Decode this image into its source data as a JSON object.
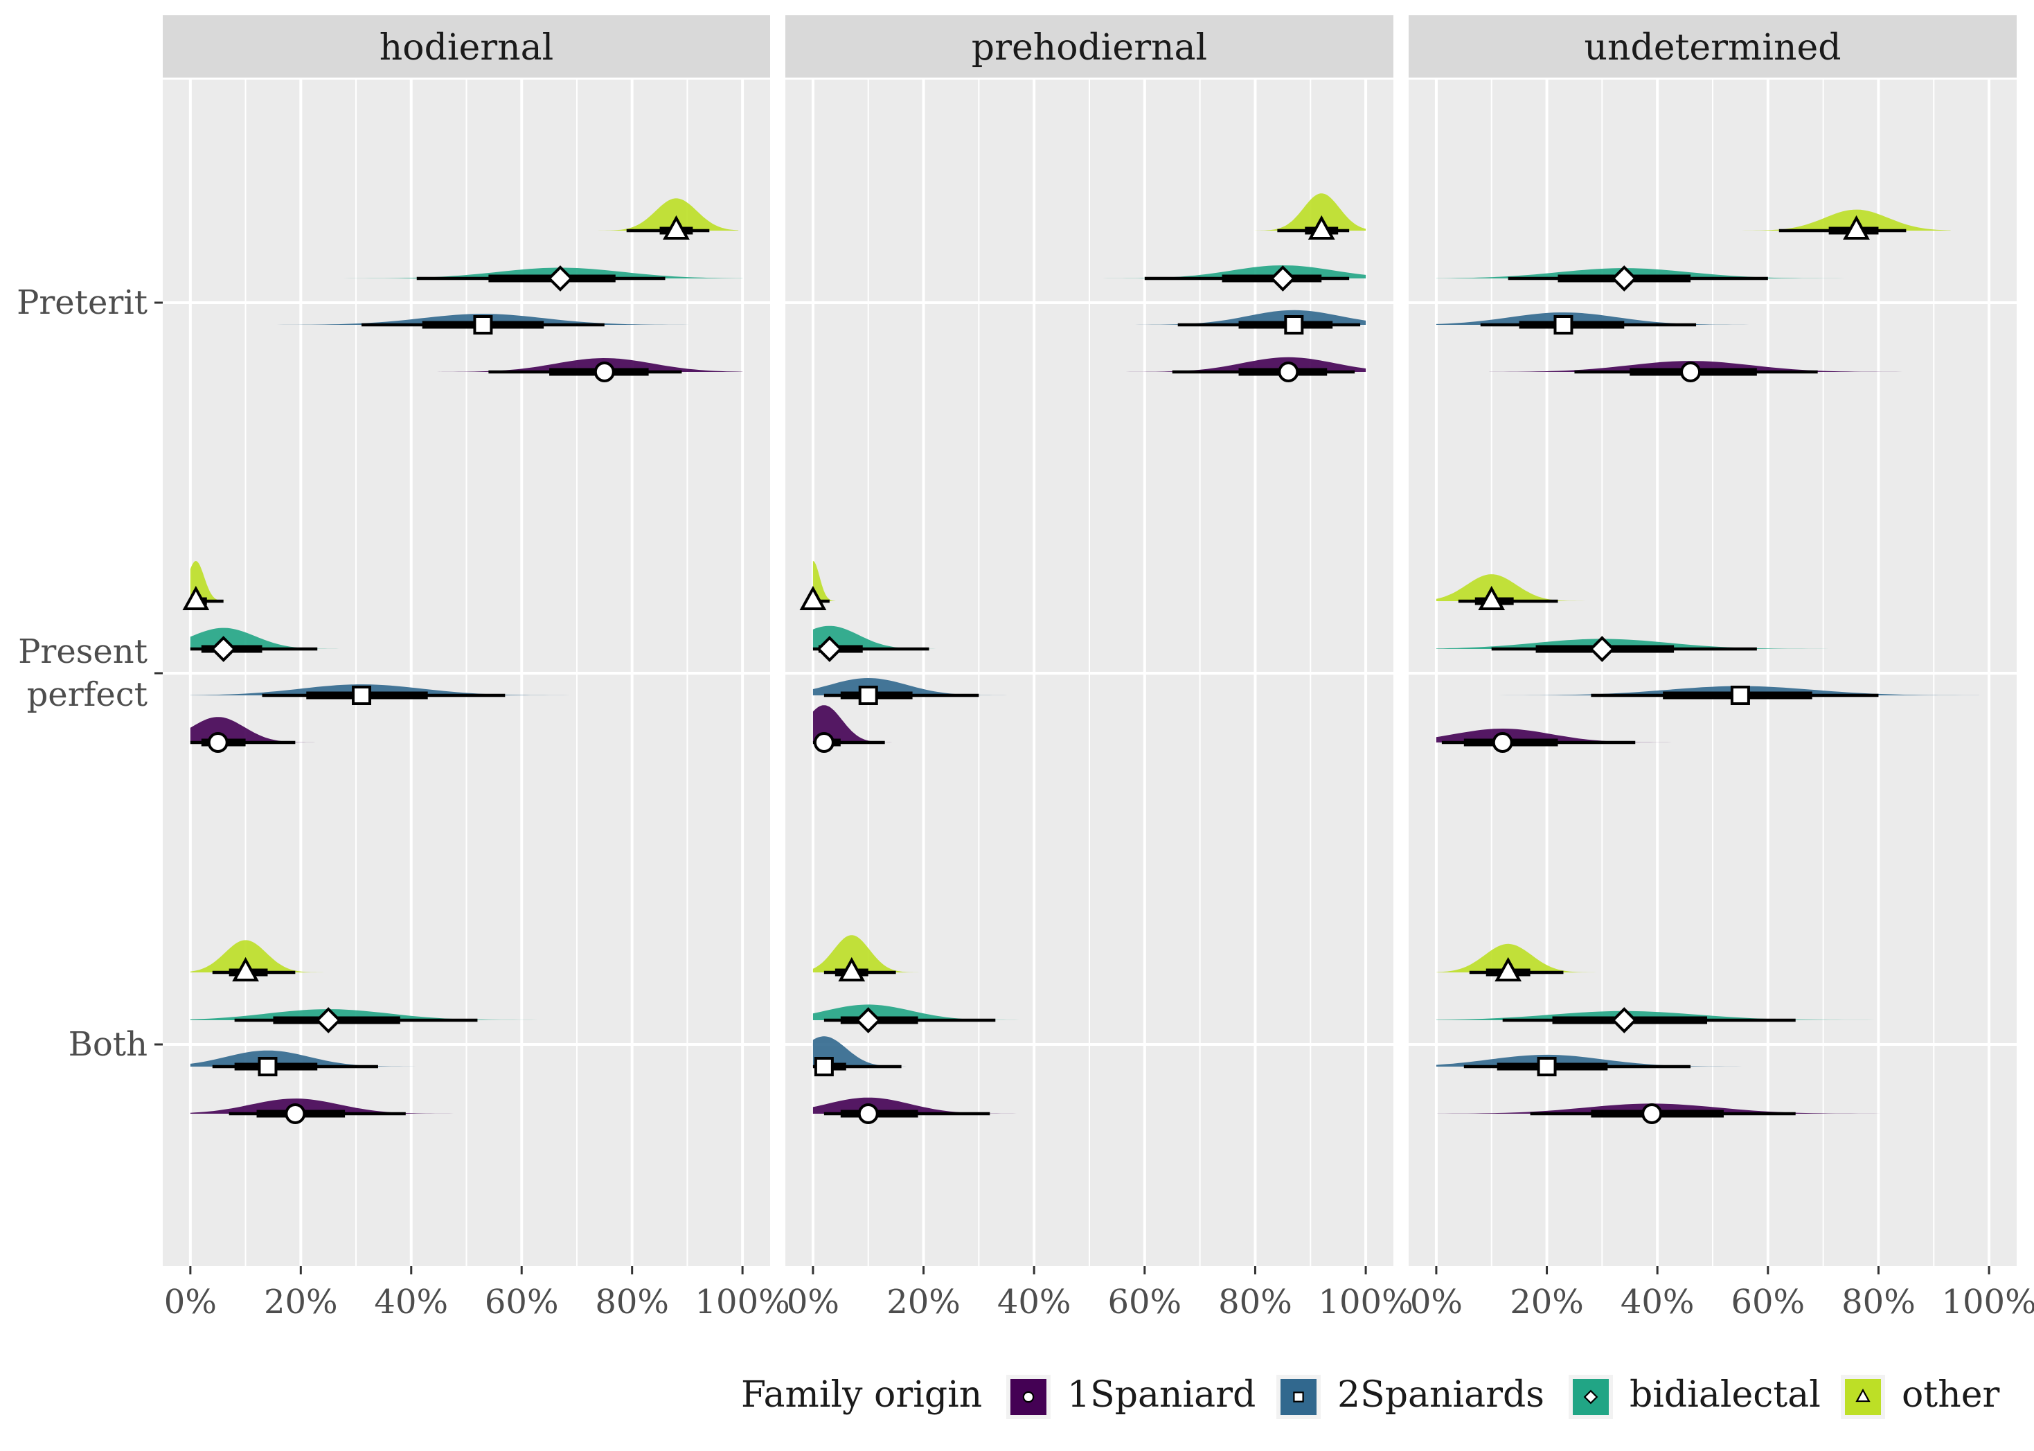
{
  "chart_data": {
    "type": "point-interval (half-eye) facet chart",
    "facets": [
      "hodiernal",
      "prehodiernal",
      "undetermined"
    ],
    "y_categories": [
      "Preterit",
      "Present\nperfect",
      "Both"
    ],
    "x_ticks": [
      0,
      20,
      40,
      60,
      80,
      100
    ],
    "x_tick_labels": [
      "0%",
      "20%",
      "40%",
      "60%",
      "80%",
      "100%"
    ],
    "xlim": [
      -5,
      105
    ],
    "legend": {
      "title": "Family origin",
      "position": "bottom",
      "entries": [
        "1Spaniard",
        "2Spaniards",
        "bidialectal",
        "other"
      ]
    },
    "colors": {
      "1Spaniard": "#440154",
      "2Spaniards": "#31688e",
      "bidialectal": "#21a585",
      "other": "#bddf26",
      "panel_bg": "#ebebeb",
      "strip_bg": "#d9d9d9",
      "grid": "#ffffff"
    },
    "shapes": {
      "1Spaniard": "circle",
      "2Spaniards": "square",
      "bidialectal": "diamond",
      "other": "triangle"
    },
    "series": [
      {
        "facet": "hodiernal",
        "category": "Preterit",
        "group": "other",
        "point": 88,
        "inner": [
          85,
          91
        ],
        "outer": [
          79,
          94
        ]
      },
      {
        "facet": "hodiernal",
        "category": "Preterit",
        "group": "bidialectal",
        "point": 67,
        "inner": [
          54,
          77
        ],
        "outer": [
          41,
          86
        ]
      },
      {
        "facet": "hodiernal",
        "category": "Preterit",
        "group": "2Spaniards",
        "point": 53,
        "inner": [
          42,
          64
        ],
        "outer": [
          31,
          75
        ]
      },
      {
        "facet": "hodiernal",
        "category": "Preterit",
        "group": "1Spaniard",
        "point": 75,
        "inner": [
          65,
          83
        ],
        "outer": [
          54,
          89
        ]
      },
      {
        "facet": "hodiernal",
        "category": "Present\nperfect",
        "group": "other",
        "point": 1,
        "inner": [
          0,
          3
        ],
        "outer": [
          0,
          6
        ]
      },
      {
        "facet": "hodiernal",
        "category": "Present\nperfect",
        "group": "bidialectal",
        "point": 6,
        "inner": [
          2,
          13
        ],
        "outer": [
          0,
          23
        ]
      },
      {
        "facet": "hodiernal",
        "category": "Present\nperfect",
        "group": "2Spaniards",
        "point": 31,
        "inner": [
          21,
          43
        ],
        "outer": [
          13,
          57
        ]
      },
      {
        "facet": "hodiernal",
        "category": "Present\nperfect",
        "group": "1Spaniard",
        "point": 5,
        "inner": [
          2,
          10
        ],
        "outer": [
          0,
          19
        ]
      },
      {
        "facet": "hodiernal",
        "category": "Both",
        "group": "other",
        "point": 10,
        "inner": [
          7,
          14
        ],
        "outer": [
          4,
          19
        ]
      },
      {
        "facet": "hodiernal",
        "category": "Both",
        "group": "bidialectal",
        "point": 25,
        "inner": [
          15,
          38
        ],
        "outer": [
          8,
          52
        ]
      },
      {
        "facet": "hodiernal",
        "category": "Both",
        "group": "2Spaniards",
        "point": 14,
        "inner": [
          8,
          23
        ],
        "outer": [
          4,
          34
        ]
      },
      {
        "facet": "hodiernal",
        "category": "Both",
        "group": "1Spaniard",
        "point": 19,
        "inner": [
          12,
          28
        ],
        "outer": [
          7,
          39
        ]
      },
      {
        "facet": "prehodiernal",
        "category": "Preterit",
        "group": "other",
        "point": 92,
        "inner": [
          89,
          95
        ],
        "outer": [
          84,
          97
        ]
      },
      {
        "facet": "prehodiernal",
        "category": "Preterit",
        "group": "bidialectal",
        "point": 85,
        "inner": [
          74,
          92
        ],
        "outer": [
          60,
          97
        ]
      },
      {
        "facet": "prehodiernal",
        "category": "Preterit",
        "group": "2Spaniards",
        "point": 87,
        "inner": [
          77,
          94
        ],
        "outer": [
          66,
          99
        ]
      },
      {
        "facet": "prehodiernal",
        "category": "Preterit",
        "group": "1Spaniard",
        "point": 86,
        "inner": [
          77,
          93
        ],
        "outer": [
          65,
          98
        ]
      },
      {
        "facet": "prehodiernal",
        "category": "Present\nperfect",
        "group": "other",
        "point": 0,
        "inner": [
          0,
          1
        ],
        "outer": [
          0,
          3
        ]
      },
      {
        "facet": "prehodiernal",
        "category": "Present\nperfect",
        "group": "bidialectal",
        "point": 3,
        "inner": [
          1,
          9
        ],
        "outer": [
          0,
          21
        ]
      },
      {
        "facet": "prehodiernal",
        "category": "Present\nperfect",
        "group": "2Spaniards",
        "point": 10,
        "inner": [
          5,
          18
        ],
        "outer": [
          2,
          30
        ]
      },
      {
        "facet": "prehodiernal",
        "category": "Present\nperfect",
        "group": "1Spaniard",
        "point": 2,
        "inner": [
          1,
          5
        ],
        "outer": [
          0,
          13
        ]
      },
      {
        "facet": "prehodiernal",
        "category": "Both",
        "group": "other",
        "point": 7,
        "inner": [
          4,
          10
        ],
        "outer": [
          2,
          15
        ]
      },
      {
        "facet": "prehodiernal",
        "category": "Both",
        "group": "bidialectal",
        "point": 10,
        "inner": [
          5,
          19
        ],
        "outer": [
          2,
          33
        ]
      },
      {
        "facet": "prehodiernal",
        "category": "Both",
        "group": "2Spaniards",
        "point": 2,
        "inner": [
          1,
          6
        ],
        "outer": [
          0,
          16
        ]
      },
      {
        "facet": "prehodiernal",
        "category": "Both",
        "group": "1Spaniard",
        "point": 10,
        "inner": [
          5,
          19
        ],
        "outer": [
          2,
          32
        ]
      },
      {
        "facet": "undetermined",
        "category": "Preterit",
        "group": "other",
        "point": 76,
        "inner": [
          71,
          80
        ],
        "outer": [
          62,
          85
        ]
      },
      {
        "facet": "undetermined",
        "category": "Preterit",
        "group": "bidialectal",
        "point": 34,
        "inner": [
          22,
          46
        ],
        "outer": [
          13,
          60
        ]
      },
      {
        "facet": "undetermined",
        "category": "Preterit",
        "group": "2Spaniards",
        "point": 23,
        "inner": [
          15,
          34
        ],
        "outer": [
          8,
          47
        ]
      },
      {
        "facet": "undetermined",
        "category": "Preterit",
        "group": "1Spaniard",
        "point": 46,
        "inner": [
          35,
          58
        ],
        "outer": [
          25,
          69
        ]
      },
      {
        "facet": "undetermined",
        "category": "Present\nperfect",
        "group": "other",
        "point": 10,
        "inner": [
          7,
          14
        ],
        "outer": [
          4,
          22
        ]
      },
      {
        "facet": "undetermined",
        "category": "Present\nperfect",
        "group": "bidialectal",
        "point": 30,
        "inner": [
          18,
          43
        ],
        "outer": [
          10,
          58
        ]
      },
      {
        "facet": "undetermined",
        "category": "Present\nperfect",
        "group": "2Spaniards",
        "point": 55,
        "inner": [
          41,
          68
        ],
        "outer": [
          28,
          80
        ]
      },
      {
        "facet": "undetermined",
        "category": "Present\nperfect",
        "group": "1Spaniard",
        "point": 12,
        "inner": [
          5,
          22
        ],
        "outer": [
          1,
          36
        ]
      },
      {
        "facet": "undetermined",
        "category": "Both",
        "group": "other",
        "point": 13,
        "inner": [
          9,
          17
        ],
        "outer": [
          6,
          23
        ]
      },
      {
        "facet": "undetermined",
        "category": "Both",
        "group": "bidialectal",
        "point": 34,
        "inner": [
          21,
          49
        ],
        "outer": [
          12,
          65
        ]
      },
      {
        "facet": "undetermined",
        "category": "Both",
        "group": "2Spaniards",
        "point": 20,
        "inner": [
          11,
          31
        ],
        "outer": [
          5,
          46
        ]
      },
      {
        "facet": "undetermined",
        "category": "Both",
        "group": "1Spaniard",
        "point": 39,
        "inner": [
          28,
          52
        ],
        "outer": [
          17,
          65
        ]
      }
    ]
  }
}
